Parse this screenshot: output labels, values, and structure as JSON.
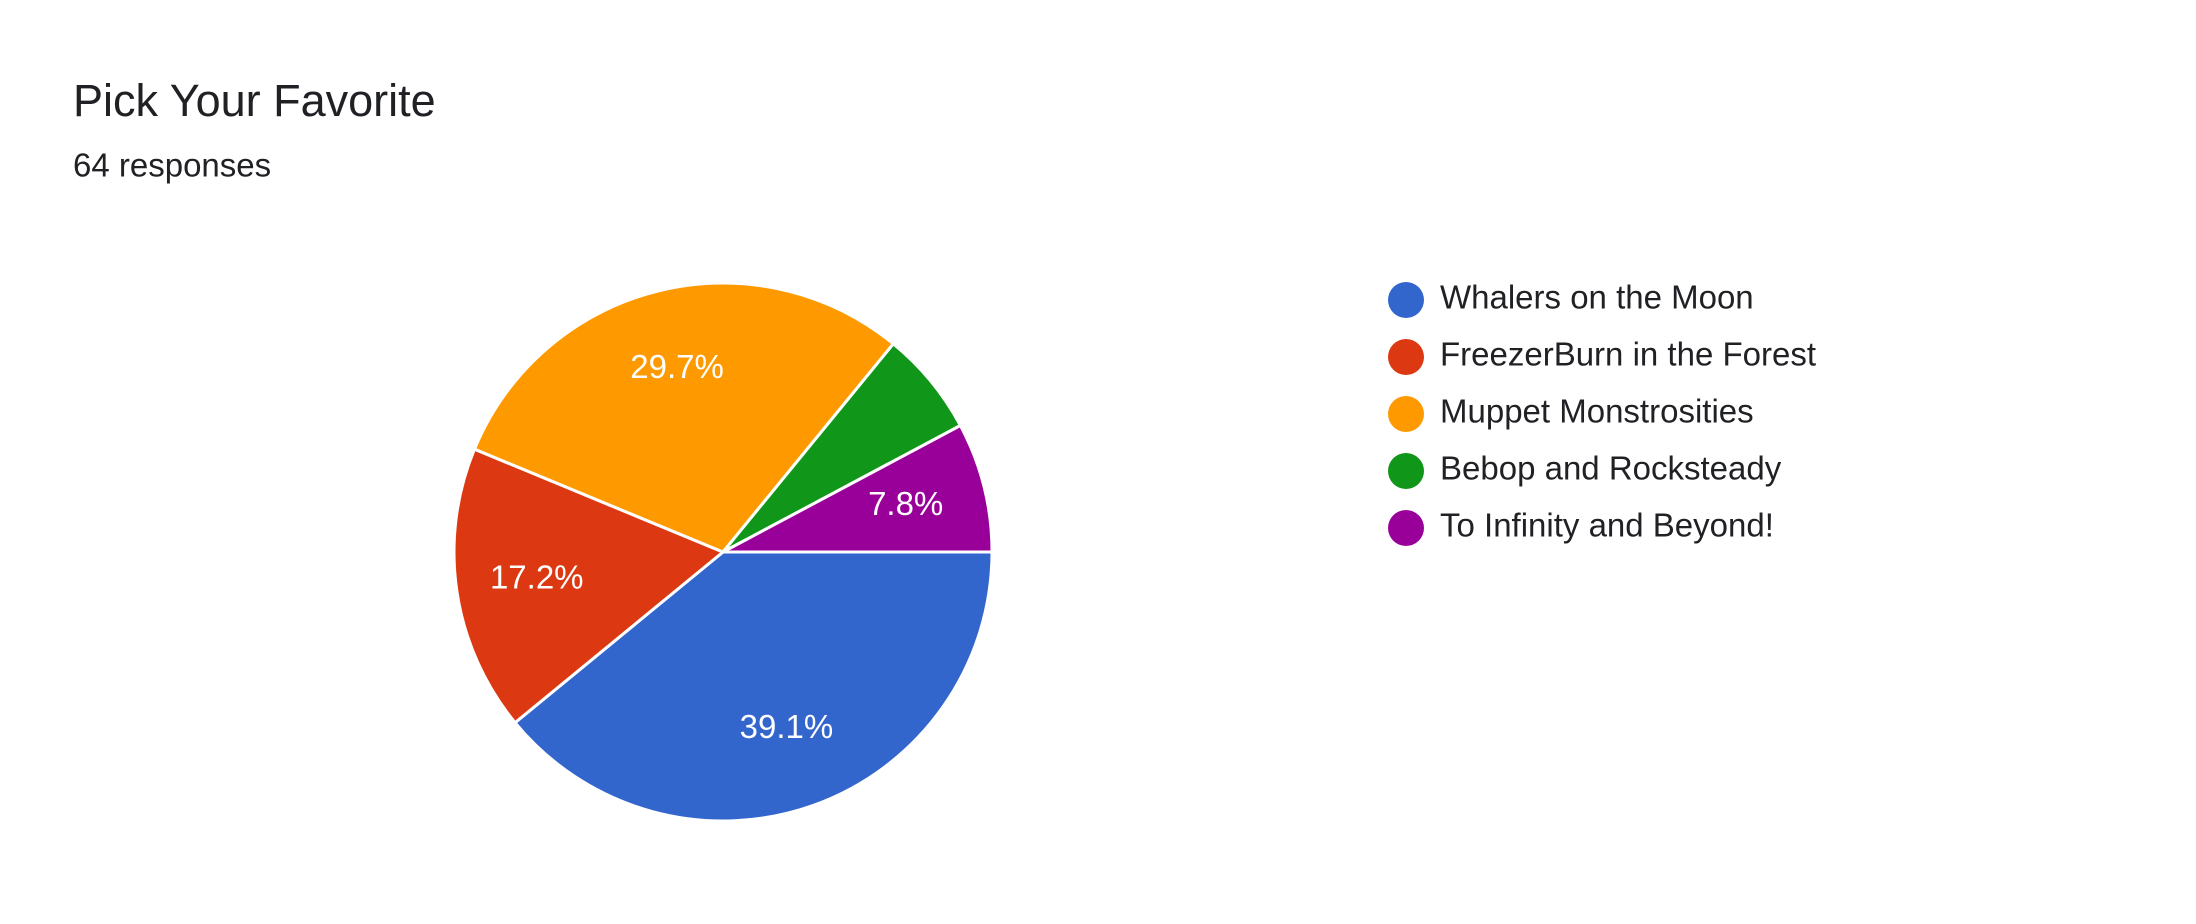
{
  "chart_data": {
    "type": "pie",
    "title": "Pick Your Favorite",
    "subtitle": "64 responses",
    "categories": [
      "Whalers on the Moon",
      "FreezerBurn in the Forest",
      "Muppet Monstrosities",
      "Bebop and Rocksteady",
      "To Infinity and Beyond!"
    ],
    "values": [
      39.1,
      17.2,
      29.7,
      6.3,
      7.8
    ],
    "value_labels": [
      "39.1%",
      "17.2%",
      "29.7%",
      null,
      "7.8%"
    ],
    "colors": [
      "#3366cc",
      "#dc3912",
      "#ff9900",
      "#109618",
      "#990099"
    ],
    "legend": "right"
  }
}
